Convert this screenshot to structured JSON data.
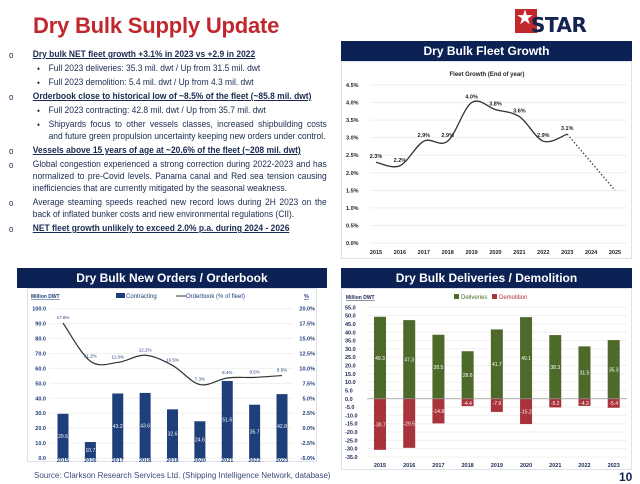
{
  "title": "Dry Bulk Supply Update",
  "logo": {
    "text": "STAR BULK",
    "brand_color": "#c0282d",
    "text_color": "#13244f"
  },
  "bullets": [
    {
      "level": 1,
      "bold": true,
      "text": "Dry bulk NET fleet growth +3.1% in 2023 vs +2.9 in 2022"
    },
    {
      "level": 2,
      "text": "Full 2023 deliveries: 35.3 mil. dwt / Up from 31.5 mil. dwt"
    },
    {
      "level": 2,
      "text": "Full 2023 demolition: 5.4 mil. dwt / Up from 4.3 mil. dwt"
    },
    {
      "level": 1,
      "bold": true,
      "text": "Orderbook close to historical low of ~8.5% of the fleet (~85.8 mil. dwt)"
    },
    {
      "level": 2,
      "text": "Full 2023 contracting: 42.8 mil. dwt / Up from 35.7 mil. dwt"
    },
    {
      "level": 2,
      "text": "Shipyards focus to other vessels classes, increased shipbuilding costs and future green propulsion uncertainty keeping new orders under control."
    },
    {
      "level": 1,
      "bold": true,
      "text": "Vessels above 15 years of age at ~20.6% of the fleet (~208 mil. dwt)"
    },
    {
      "level": 1,
      "text": "Global congestion experienced a strong correction during 2022-2023 and has normalized to pre-Covid levels. Panama canal and Red sea tension causing inefficiencies that are currently mitigated by the seasonal weakness."
    },
    {
      "level": 1,
      "text": "Average steaming speeds reached new record lows during 2H 2023 on the back of inflated bunker costs and new environmental regulations (CII)."
    },
    {
      "level": 1,
      "bold": true,
      "text": "NET fleet growth unlikely to exceed 2.0% p.a. during 2024 - 2026"
    }
  ],
  "markers": {
    "level1": "o",
    "level2": "•"
  },
  "source": "Source: Clarkson Research Services Ltd. (Shipping Intelligence Network, database)",
  "page_number": "10",
  "chart_data": [
    {
      "type": "line",
      "panel_title": "Dry Bulk Fleet Growth",
      "title": "Fleet Growth (End of year)",
      "x": [
        "2015",
        "2016",
        "2017",
        "2018",
        "2019",
        "2020",
        "2021",
        "2022",
        "2023",
        "2024",
        "2025"
      ],
      "values": [
        2.3,
        2.2,
        2.9,
        2.9,
        4.0,
        3.8,
        3.6,
        2.9,
        3.1,
        null,
        null
      ],
      "projected": {
        "x": [
          "2023",
          "2024",
          "2025"
        ],
        "values": [
          3.1,
          2.3,
          1.5
        ],
        "style": "dotted"
      },
      "labels": [
        "2.3%",
        "2.2%",
        "2.9%",
        "2.9%",
        "4.0%",
        "3.8%",
        "3.6%",
        "2.9%",
        "3.1%"
      ],
      "yticks": [
        "0.0%",
        "0.5%",
        "1.0%",
        "1.5%",
        "2.0%",
        "2.5%",
        "3.0%",
        "3.5%",
        "4.0%",
        "4.5%"
      ],
      "ylim": [
        0,
        4.5
      ],
      "grid": true,
      "color": "#333333"
    },
    {
      "type": "bar",
      "panel_title": "Dry Bulk New Orders / Orderbook",
      "ylabel": "Million DWT",
      "y2label": "%",
      "categories": [
        "2015",
        "2016",
        "2017",
        "2018",
        "2019",
        "2020",
        "2021",
        "2022",
        "2023"
      ],
      "series": [
        {
          "name": "Contracting",
          "type": "bar",
          "axis": "left",
          "values": [
            29.6,
            10.7,
            43.2,
            43.6,
            32.6,
            24.6,
            51.6,
            35.7,
            42.8
          ],
          "color": "#1f3f7a"
        },
        {
          "name": "Orderbook (% of fleet)",
          "type": "line",
          "axis": "right",
          "values": [
            17.6,
            11.2,
            11.0,
            12.2,
            10.5,
            7.3,
            8.4,
            8.5,
            8.8
          ],
          "labels": [
            "17.6%",
            "11.2%",
            "11.0%",
            "12.2%",
            "10.5%",
            "7.3%",
            "8.4%",
            "8.5%",
            "8.8%"
          ],
          "color": "#333333"
        }
      ],
      "yticks": [
        "0.0",
        "10.0",
        "20.0",
        "30.0",
        "40.0",
        "50.0",
        "60.0",
        "70.0",
        "80.0",
        "90.0",
        "100.0"
      ],
      "y2ticks": [
        "-5.0%",
        "-2.5%",
        "0.0%",
        "2.5%",
        "5.0%",
        "7.5%",
        "10.0%",
        "12.5%",
        "15.0%",
        "17.5%",
        "20.0%"
      ],
      "ylim": [
        0,
        100
      ],
      "y2lim": [
        -5,
        20
      ],
      "legend": "top",
      "grid": true
    },
    {
      "type": "bar",
      "panel_title": "Dry Bulk Deliveries / Demolition",
      "ylabel": "Million DWT",
      "categories": [
        "2015",
        "2016",
        "2017",
        "2018",
        "2019",
        "2020",
        "2021",
        "2022",
        "2023"
      ],
      "series": [
        {
          "name": "Deliveries",
          "values": [
            49.3,
            47.3,
            38.5,
            28.6,
            41.7,
            49.1,
            38.3,
            31.5,
            35.3
          ],
          "color": "#4e6a2a"
        },
        {
          "name": "Demolition",
          "values": [
            -30.7,
            -29.5,
            -14.8,
            -4.4,
            -7.9,
            -15.2,
            -5.2,
            -4.3,
            -5.4
          ],
          "color": "#a8333a"
        }
      ],
      "yticks": [
        "-35.0",
        "-30.0",
        "-25.0",
        "-20.0",
        "-15.0",
        "-10.0",
        "-5.0",
        "0.0",
        "5.0",
        "10.0",
        "15.0",
        "20.0",
        "25.0",
        "30.0",
        "35.0",
        "40.0",
        "45.0",
        "50.0",
        "55.0"
      ],
      "ylim": [
        -35,
        55
      ],
      "legend": "top",
      "grid": true
    }
  ]
}
